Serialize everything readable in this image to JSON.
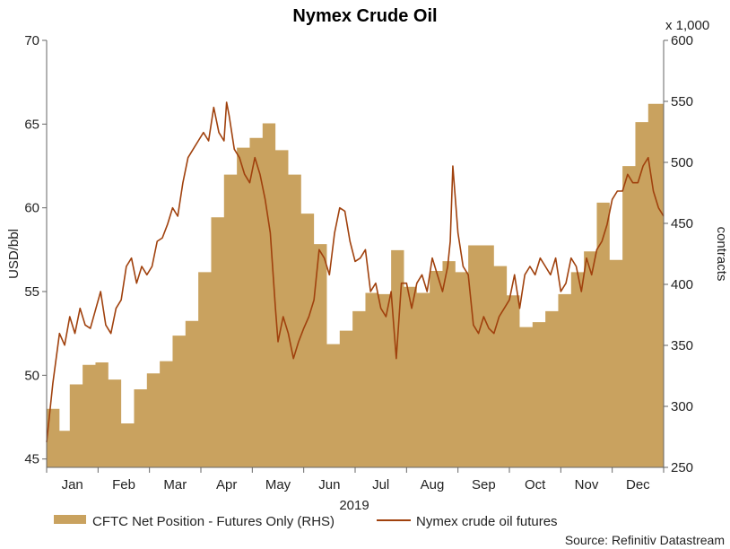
{
  "chart_data": {
    "type": "line",
    "title": "Nymex Crude Oil",
    "xlabel": "2019",
    "ylabel": "USD/bbl",
    "ylabel_right": "contracts",
    "right_multiplier": "x 1,000",
    "source": "Source: Refinitiv Datastream",
    "grid": false,
    "legend_position": "bottom-left",
    "ylim": [
      44.5,
      70
    ],
    "ylim_right": [
      250,
      600
    ],
    "yticks": [
      "45",
      "50",
      "55",
      "60",
      "65",
      "70"
    ],
    "yticks_right": [
      "250",
      "300",
      "350",
      "400",
      "450",
      "500",
      "550",
      "600"
    ],
    "months": [
      "Jan",
      "Feb",
      "Mar",
      "Apr",
      "May",
      "Jun",
      "Jul",
      "Aug",
      "Sep",
      "Oct",
      "Nov",
      "Dec"
    ],
    "series": [
      {
        "name": "CFTC Net Position - Futures Only (RHS)",
        "type": "area",
        "axis": "right",
        "color": "#c9a25f",
        "x": [
          0,
          0.25,
          0.45,
          0.7,
          0.95,
          1.2,
          1.45,
          1.7,
          1.95,
          2.2,
          2.45,
          2.7,
          2.95,
          3.2,
          3.45,
          3.7,
          3.95,
          4.2,
          4.45,
          4.7,
          4.95,
          5.2,
          5.45,
          5.7,
          5.95,
          6.2,
          6.45,
          6.7,
          6.95,
          7.2,
          7.45,
          7.7,
          7.95,
          8.2,
          8.45,
          8.7,
          8.95,
          9.2,
          9.45,
          9.7,
          9.95,
          10.2,
          10.45,
          10.7,
          10.95,
          11.2,
          11.45,
          11.7,
          12
        ],
        "values": [
          298,
          280,
          318,
          334,
          336,
          322,
          286,
          314,
          327,
          337,
          358,
          370,
          410,
          455,
          490,
          512,
          520,
          532,
          510,
          490,
          458,
          433,
          351,
          362,
          378,
          393,
          392,
          428,
          398,
          393,
          411,
          419,
          410,
          432,
          432,
          415,
          391,
          365,
          369,
          378,
          392,
          410,
          427,
          467,
          420,
          497,
          533,
          548,
          565
        ]
      },
      {
        "name": "Nymex crude oil futures",
        "type": "line",
        "axis": "left",
        "color": "#a0410d",
        "x": [
          0,
          0.12,
          0.25,
          0.35,
          0.45,
          0.55,
          0.65,
          0.75,
          0.85,
          0.95,
          1.05,
          1.15,
          1.25,
          1.35,
          1.45,
          1.55,
          1.65,
          1.75,
          1.85,
          1.95,
          2.05,
          2.15,
          2.25,
          2.35,
          2.45,
          2.55,
          2.65,
          2.75,
          2.85,
          2.95,
          3.05,
          3.15,
          3.25,
          3.35,
          3.45,
          3.5,
          3.55,
          3.65,
          3.75,
          3.85,
          3.95,
          4.05,
          4.15,
          4.25,
          4.35,
          4.45,
          4.5,
          4.6,
          4.7,
          4.8,
          4.9,
          5.0,
          5.1,
          5.2,
          5.3,
          5.4,
          5.5,
          5.6,
          5.7,
          5.8,
          5.9,
          6.0,
          6.1,
          6.2,
          6.3,
          6.4,
          6.5,
          6.6,
          6.7,
          6.8,
          6.9,
          7.0,
          7.1,
          7.2,
          7.3,
          7.4,
          7.5,
          7.6,
          7.7,
          7.8,
          7.85,
          7.9,
          8.0,
          8.1,
          8.2,
          8.3,
          8.4,
          8.5,
          8.6,
          8.7,
          8.8,
          8.9,
          9.0,
          9.1,
          9.2,
          9.3,
          9.4,
          9.5,
          9.6,
          9.7,
          9.8,
          9.9,
          10.0,
          10.1,
          10.2,
          10.3,
          10.4,
          10.5,
          10.6,
          10.7,
          10.8,
          10.9,
          11.0,
          11.1,
          11.2,
          11.3,
          11.4,
          11.5,
          11.6,
          11.7,
          11.8,
          11.9,
          12.0
        ],
        "values": [
          46.0,
          49.5,
          52.5,
          51.8,
          53.5,
          52.5,
          54.0,
          53.0,
          52.8,
          53.9,
          55.0,
          53.0,
          52.5,
          54.0,
          54.5,
          56.5,
          57.0,
          55.5,
          56.5,
          56.0,
          56.5,
          58.0,
          58.2,
          59.0,
          60.0,
          59.5,
          61.5,
          63.0,
          63.5,
          64.0,
          64.5,
          64.0,
          66.0,
          64.5,
          64.0,
          66.3,
          65.5,
          63.5,
          63.0,
          62.0,
          61.5,
          63.0,
          62.0,
          60.5,
          58.5,
          54.0,
          52.0,
          53.5,
          52.5,
          51.0,
          52.0,
          52.8,
          53.5,
          54.5,
          57.5,
          57.0,
          56.0,
          58.5,
          60.0,
          59.8,
          58.0,
          56.8,
          57.0,
          57.5,
          55.0,
          55.5,
          54.0,
          53.5,
          55.0,
          51.0,
          55.5,
          55.5,
          54.0,
          55.5,
          56.0,
          55.0,
          57.0,
          56.0,
          55.0,
          56.5,
          58.0,
          62.5,
          58.5,
          56.5,
          56.0,
          53.0,
          52.5,
          53.5,
          52.8,
          52.5,
          53.5,
          54.0,
          54.5,
          56.0,
          54.0,
          56.0,
          56.5,
          56.0,
          57.0,
          56.5,
          56.0,
          57.0,
          55.0,
          55.5,
          57.0,
          56.5,
          55.0,
          57.0,
          56.0,
          57.5,
          58.0,
          59.0,
          60.5,
          61.0,
          61.0,
          62.0,
          61.5,
          61.5,
          62.5,
          63.0,
          61.0,
          60.0,
          59.5
        ]
      }
    ]
  }
}
